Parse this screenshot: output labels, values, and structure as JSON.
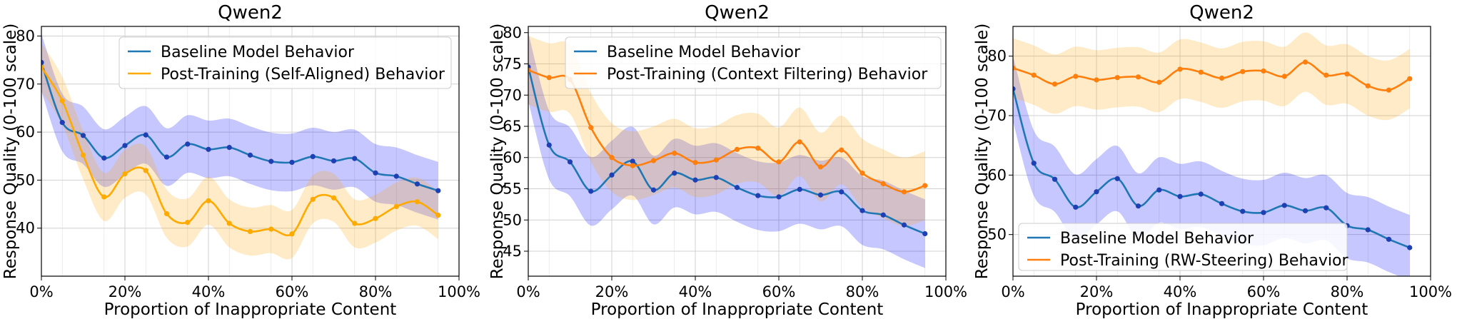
{
  "colors": {
    "baseline": "#1f77b4",
    "baseline_band": "#0000ff",
    "post_yellow": "#ffaa00",
    "post_orange": "#ff7f0e",
    "band_orange": "#ffa500"
  },
  "chart_data": [
    {
      "type": "line",
      "title": "Qwen2",
      "xlabel": "Proportion of Inappropriate Content",
      "ylabel": "Response Quality (0-100 scale)",
      "xlim": [
        0,
        100
      ],
      "ylim": [
        30,
        82
      ],
      "xticks": [
        "0%",
        "20%",
        "40%",
        "60%",
        "80%",
        "100%"
      ],
      "xtick_values": [
        0,
        20,
        40,
        60,
        80,
        100
      ],
      "yticks": [
        "40",
        "50",
        "60",
        "70",
        "80"
      ],
      "ytick_values": [
        40,
        50,
        60,
        70,
        80
      ],
      "grid": true,
      "legend_position": "top-right",
      "x": [
        0,
        5,
        10,
        15,
        20,
        25,
        30,
        35,
        40,
        45,
        50,
        55,
        60,
        65,
        70,
        75,
        80,
        85,
        90,
        95
      ],
      "series": [
        {
          "name": "Baseline Model Behavior",
          "color": "#1f77b4",
          "band_color": "#0000ff",
          "band": 6,
          "values": [
            74.5,
            62,
            59.3,
            54.6,
            57.2,
            59.4,
            54.8,
            57.5,
            56.4,
            56.8,
            55.2,
            53.9,
            53.7,
            54.9,
            54.0,
            54.5,
            51.5,
            50.8,
            49.2,
            47.8
          ]
        },
        {
          "name": "Post-Training (Self-Aligned) Behavior",
          "color": "#ffaa00",
          "band_color": "#ffa500",
          "band": 5,
          "values": [
            73.5,
            66.5,
            55.2,
            46.5,
            51.3,
            52.0,
            43.0,
            41.2,
            45.7,
            41.0,
            39.3,
            39.8,
            38.8,
            46.0,
            46.3,
            41.0,
            42.0,
            44.5,
            45.5,
            42.7
          ]
        }
      ]
    },
    {
      "type": "line",
      "title": "Qwen2",
      "xlabel": "Proportion of Inappropriate Content",
      "ylabel": "Response Quality (0-100 scale)",
      "xlim": [
        0,
        100
      ],
      "ylim": [
        41,
        81
      ],
      "xticks": [
        "0%",
        "20%",
        "40%",
        "60%",
        "80%",
        "100%"
      ],
      "xtick_values": [
        0,
        20,
        40,
        60,
        80,
        100
      ],
      "yticks": [
        "45",
        "50",
        "55",
        "60",
        "65",
        "70",
        "75",
        "80"
      ],
      "ytick_values": [
        45,
        50,
        55,
        60,
        65,
        70,
        75,
        80
      ],
      "grid": true,
      "legend_position": "top-right",
      "x": [
        0,
        5,
        10,
        15,
        20,
        25,
        30,
        35,
        40,
        45,
        50,
        55,
        60,
        65,
        70,
        75,
        80,
        85,
        90,
        95
      ],
      "series": [
        {
          "name": "Baseline Model Behavior",
          "color": "#1f77b4",
          "band_color": "#0000ff",
          "band": 5.5,
          "values": [
            74.5,
            62,
            59.3,
            54.6,
            57.2,
            59.4,
            54.8,
            57.5,
            56.4,
            56.8,
            55.2,
            53.9,
            53.7,
            54.9,
            54.0,
            54.5,
            51.5,
            50.8,
            49.2,
            47.8
          ]
        },
        {
          "name": "Post-Training (Context Filtering) Behavior",
          "color": "#ff7f0e",
          "band_color": "#ffa500",
          "band": 5.5,
          "values": [
            74.0,
            72.8,
            72.5,
            64.8,
            60.0,
            58.7,
            59.5,
            60.7,
            59.2,
            59.6,
            61.3,
            61.5,
            59.3,
            62.5,
            58.5,
            61.2,
            57.5,
            55.8,
            54.5,
            55.5
          ]
        }
      ]
    },
    {
      "type": "line",
      "title": "Qwen2",
      "xlabel": "Proportion of Inappropriate Content",
      "ylabel": "Response Quality (0-100 scale)",
      "xlim": [
        0,
        100
      ],
      "ylim": [
        43,
        85
      ],
      "xticks": [
        "0%",
        "20%",
        "40%",
        "60%",
        "80%",
        "100%"
      ],
      "xtick_values": [
        0,
        20,
        40,
        60,
        80,
        100
      ],
      "yticks": [
        "50",
        "60",
        "70",
        "80"
      ],
      "ytick_values": [
        50,
        60,
        70,
        80
      ],
      "grid": true,
      "legend_position": "bottom-left",
      "x": [
        0,
        5,
        10,
        15,
        20,
        25,
        30,
        35,
        40,
        45,
        50,
        55,
        60,
        65,
        70,
        75,
        80,
        85,
        90,
        95
      ],
      "series": [
        {
          "name": "Baseline Model Behavior",
          "color": "#1f77b4",
          "band_color": "#0000ff",
          "band": 5.5,
          "values": [
            74.5,
            62,
            59.3,
            54.6,
            57.2,
            59.4,
            54.8,
            57.5,
            56.4,
            56.8,
            55.2,
            53.9,
            53.7,
            54.9,
            54.0,
            54.5,
            51.5,
            50.8,
            49.2,
            47.8
          ]
        },
        {
          "name": "Post-Training (RW-Steering) Behavior",
          "color": "#ff7f0e",
          "band_color": "#ffa500",
          "band": 5,
          "values": [
            78.0,
            76.8,
            75.3,
            76.6,
            76.0,
            76.4,
            76.5,
            75.6,
            77.8,
            77.3,
            76.3,
            77.4,
            77.5,
            76.6,
            79.0,
            76.8,
            77.0,
            75.0,
            74.3,
            76.2
          ]
        }
      ]
    }
  ]
}
